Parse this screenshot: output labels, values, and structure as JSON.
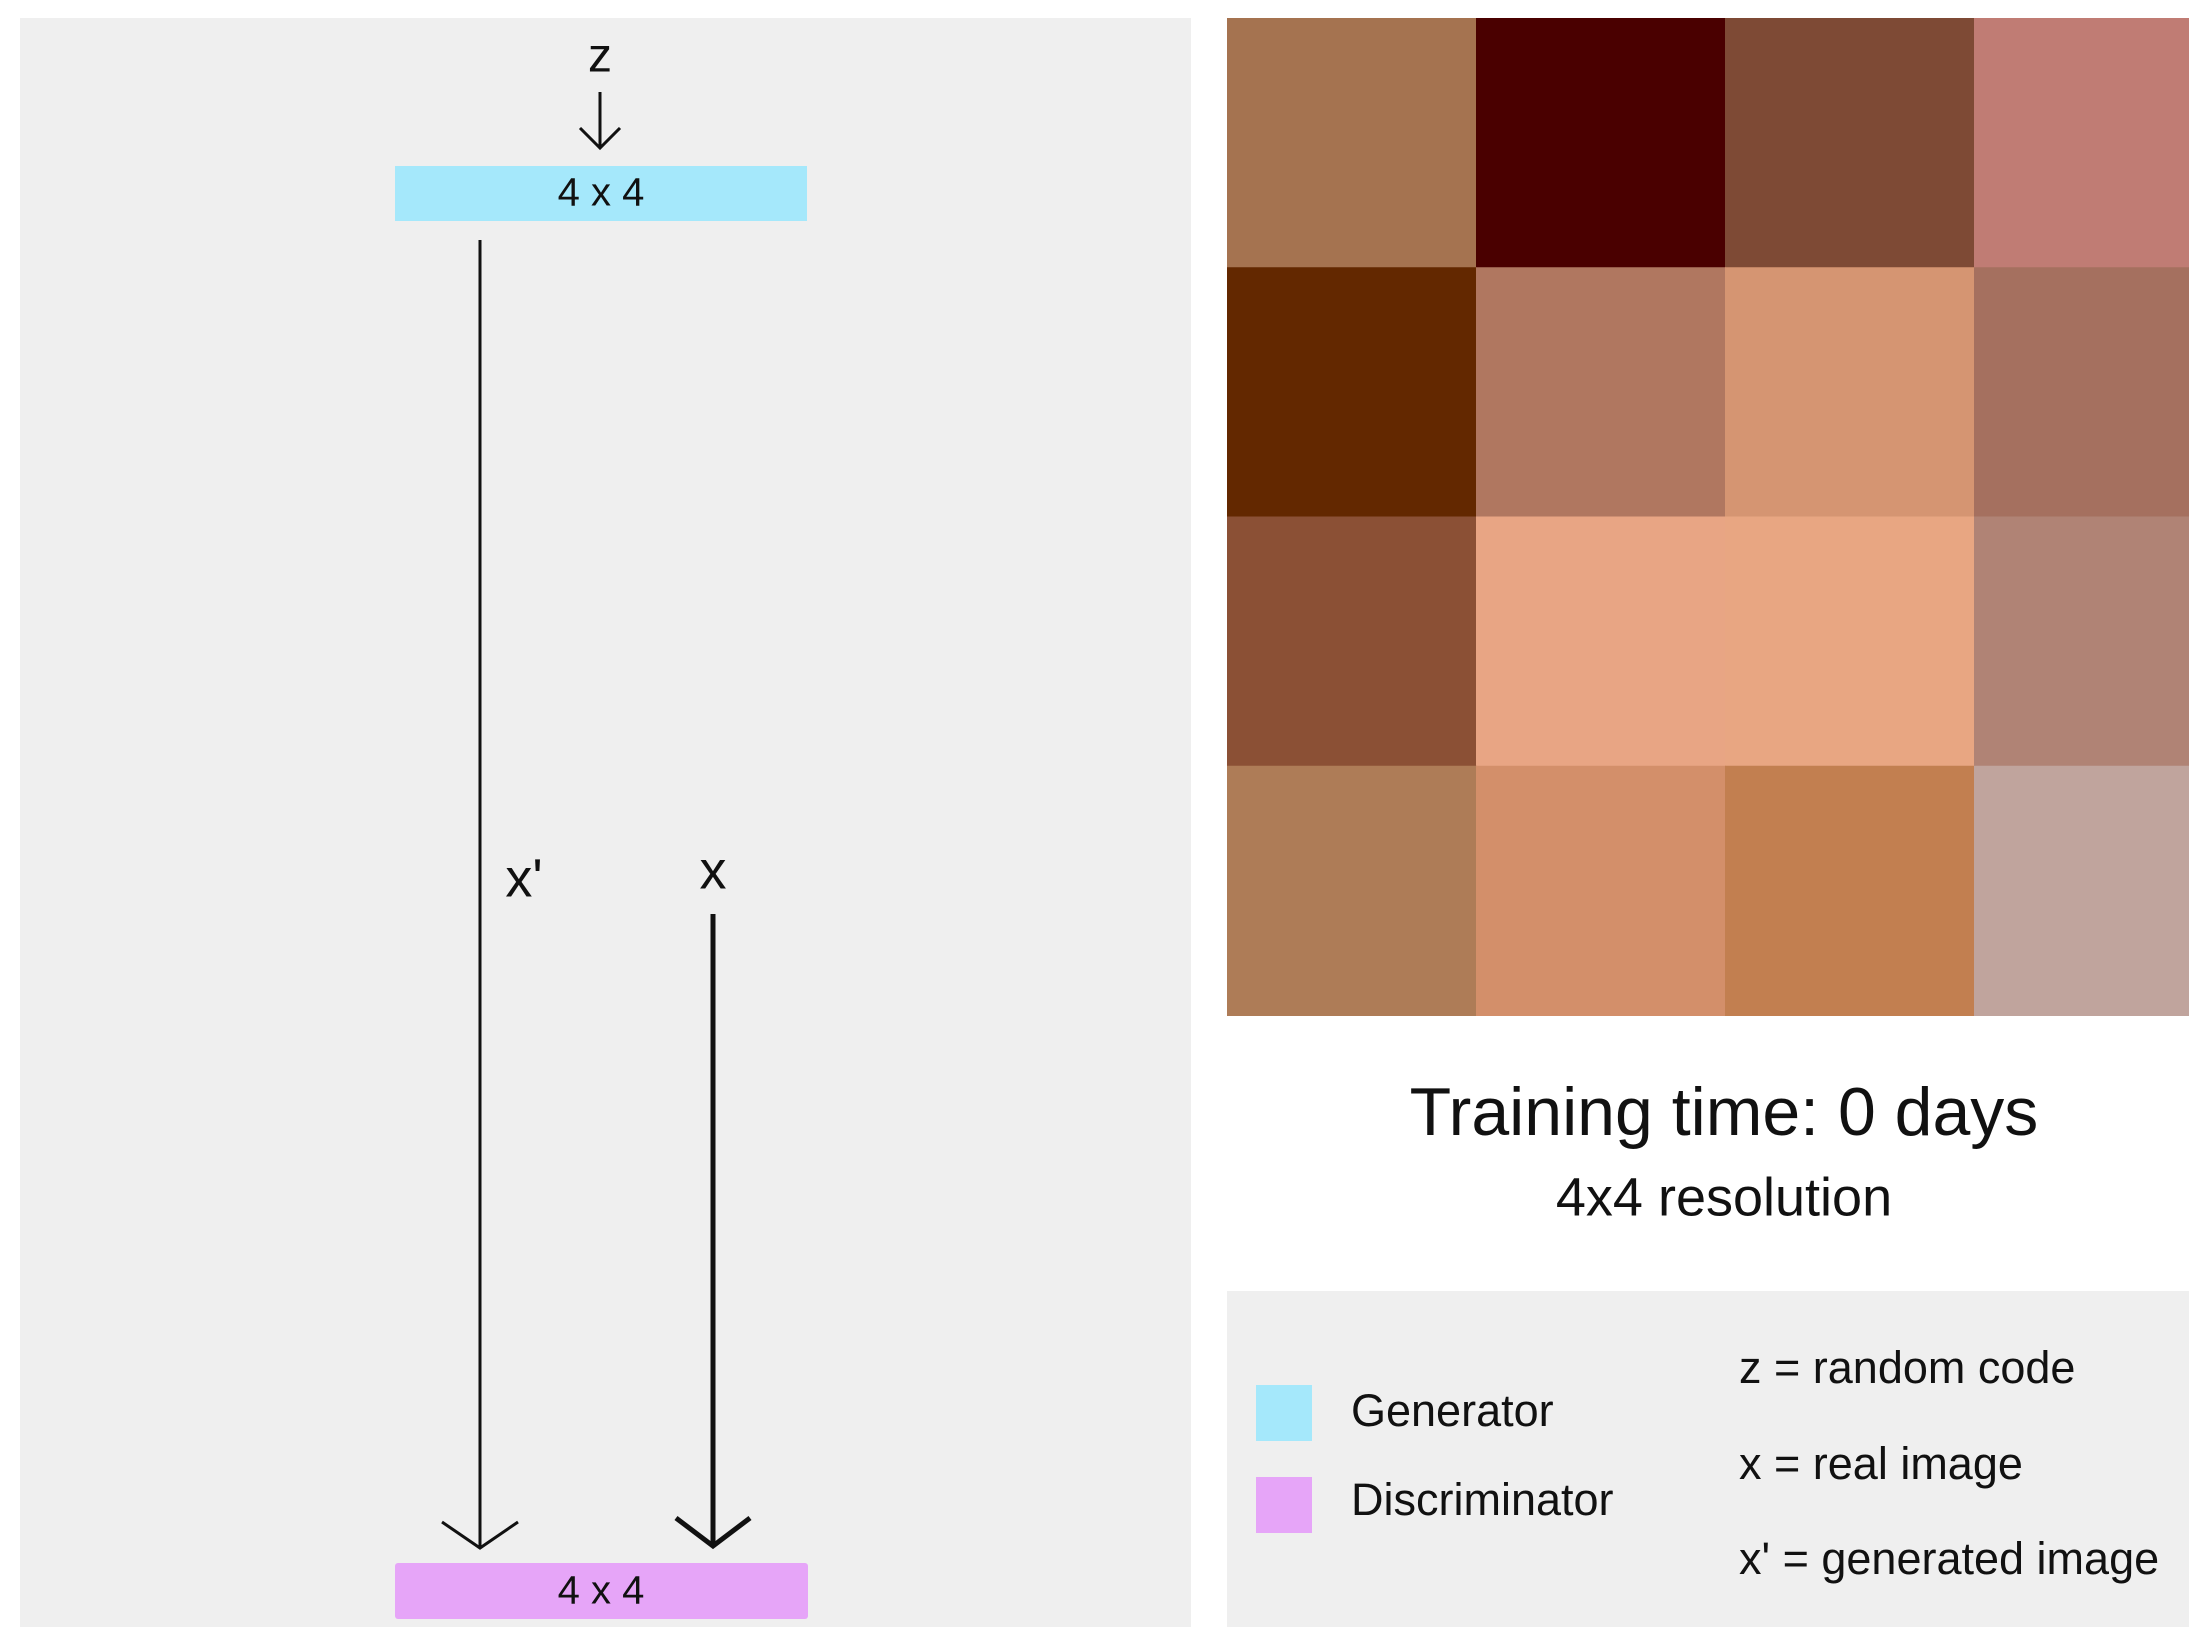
{
  "diagram": {
    "z_label": "z",
    "generator_block": "4 x 4",
    "x_prime_label": "x'",
    "x_label": "x",
    "discriminator_block": "4 x 4"
  },
  "image_panel": {
    "title": "Training time: 0 days",
    "subtitle": "4x4 resolution"
  },
  "legend": {
    "items": [
      "Generator",
      "Discriminator"
    ],
    "definitions": [
      "z = random code",
      "x = real image",
      "x' = generated image"
    ]
  }
}
